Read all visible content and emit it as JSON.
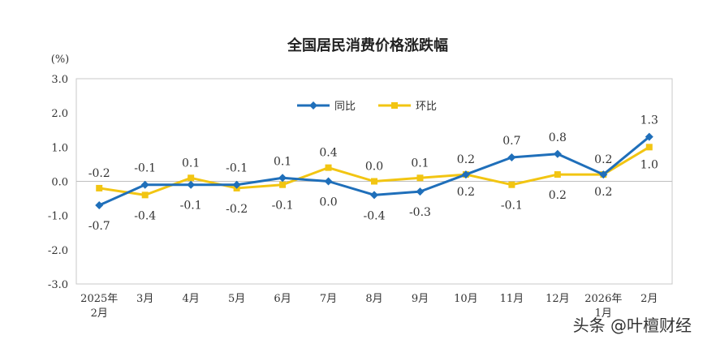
{
  "chart_data": {
    "type": "line",
    "title": "全国居民消费价格涨跌幅",
    "yunit": "(%)",
    "ylim": [
      -3.0,
      3.0
    ],
    "yticks": [
      "3.0",
      "2.0",
      "1.0",
      "0.0",
      "-1.0",
      "-2.0",
      "-3.0"
    ],
    "categories": [
      [
        "2025年",
        "2月"
      ],
      [
        "3月"
      ],
      [
        "4月"
      ],
      [
        "5月"
      ],
      [
        "6月"
      ],
      [
        "7月"
      ],
      [
        "8月"
      ],
      [
        "9月"
      ],
      [
        "10月"
      ],
      [
        "11月"
      ],
      [
        "12月"
      ],
      [
        "2026年",
        "1月"
      ],
      [
        "2月"
      ]
    ],
    "series": [
      {
        "name": "同比",
        "color": "#1f6fba",
        "values": [
          -0.7,
          -0.1,
          -0.1,
          -0.1,
          0.1,
          0.0,
          -0.4,
          -0.3,
          0.2,
          0.7,
          0.8,
          0.2,
          1.3
        ],
        "labels": [
          "-0.7",
          "-0.1",
          "-0.1",
          "-0.1",
          "0.1",
          "0.0",
          "-0.4",
          "-0.3",
          "0.2",
          "0.7",
          "0.8",
          "0.2",
          "1.3"
        ]
      },
      {
        "name": "环比",
        "color": "#f2c512",
        "values": [
          -0.2,
          -0.4,
          0.1,
          -0.2,
          -0.1,
          0.4,
          0.0,
          0.1,
          0.2,
          -0.1,
          0.2,
          0.2,
          1.0
        ],
        "labels": [
          "-0.2",
          "-0.4",
          "0.1",
          "-0.2",
          "-0.1",
          "0.4",
          "0.0",
          "0.1",
          "0.2",
          "-0.1",
          "0.2",
          "0.2",
          "1.0"
        ]
      }
    ],
    "legend": "top-center",
    "grid": false
  },
  "watermark": "头条 @叶檀财经"
}
